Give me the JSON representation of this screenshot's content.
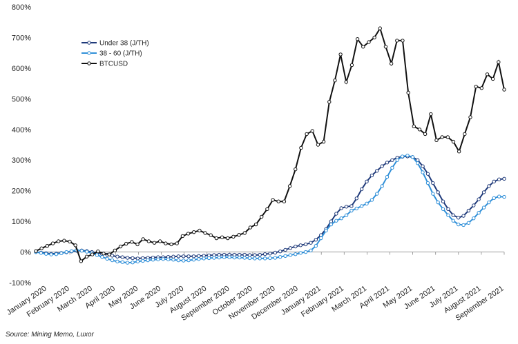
{
  "chart_data": {
    "type": "line",
    "title": "",
    "xlabel": "",
    "ylabel": "",
    "ylim": [
      -100,
      800
    ],
    "y_ticks": [
      "-100%",
      "0%",
      "100%",
      "200%",
      "300%",
      "400%",
      "500%",
      "600%",
      "700%",
      "800%"
    ],
    "y_tick_values": [
      -100,
      0,
      100,
      200,
      300,
      400,
      500,
      600,
      700,
      800
    ],
    "x_ticks": [
      "January 2020",
      "February 2020",
      "March 2020",
      "April 2020",
      "May 2020",
      "June 2020",
      "July 2020",
      "August 2020",
      "September 2020",
      "October 2020",
      "November 2020",
      "December 2020",
      "January 2021",
      "February 2021",
      "March 2021",
      "April 2021",
      "May 2021",
      "June 2021",
      "July 2021",
      "August 2021",
      "September 2021"
    ],
    "x_range": [
      0,
      90
    ],
    "legend_position": "top-left",
    "series": [
      {
        "name": "Under 38 (J/TH)",
        "color": "#1f3a7a",
        "values": [
          0,
          -2,
          -4,
          -6,
          -5,
          -3,
          -1,
          2,
          4,
          5,
          3,
          0,
          -3,
          -6,
          -9,
          -12,
          -15,
          -17,
          -19,
          -20,
          -21,
          -20,
          -19,
          -18,
          -17,
          -17,
          -16,
          -15,
          -14,
          -14,
          -14,
          -14,
          -13,
          -12,
          -11,
          -10,
          -9,
          -9,
          -9,
          -9,
          -9,
          -9,
          -10,
          -10,
          -9,
          -7,
          -5,
          -2,
          2,
          7,
          13,
          18,
          22,
          25,
          30,
          40,
          55,
          75,
          100,
          125,
          143,
          148,
          150,
          175,
          205,
          230,
          250,
          265,
          280,
          292,
          300,
          308,
          311,
          312,
          310,
          300,
          280,
          255,
          225,
          195,
          165,
          140,
          120,
          112,
          118,
          135,
          152,
          172,
          195,
          215,
          230,
          237,
          239
        ]
      },
      {
        "name": "38 - 60 (J/TH)",
        "color": "#2f8fd8",
        "values": [
          0,
          -3,
          -6,
          -8,
          -7,
          -4,
          0,
          3,
          6,
          4,
          1,
          -4,
          -10,
          -16,
          -22,
          -27,
          -31,
          -33,
          -35,
          -34,
          -31,
          -29,
          -27,
          -25,
          -24,
          -23,
          -24,
          -25,
          -27,
          -28,
          -27,
          -25,
          -23,
          -21,
          -20,
          -19,
          -18,
          -17,
          -17,
          -18,
          -18,
          -19,
          -20,
          -21,
          -21,
          -21,
          -20,
          -19,
          -16,
          -13,
          -10,
          -7,
          -3,
          0,
          5,
          20,
          45,
          70,
          90,
          102,
          110,
          120,
          135,
          142,
          150,
          158,
          170,
          190,
          215,
          245,
          275,
          300,
          312,
          315,
          310,
          290,
          260,
          225,
          190,
          162,
          140,
          120,
          102,
          90,
          88,
          95,
          110,
          128,
          145,
          162,
          176,
          181,
          180
        ]
      },
      {
        "name": "BTCUSD",
        "color": "#111111",
        "values": [
          3,
          12,
          20,
          28,
          35,
          37,
          34,
          22,
          -30,
          -15,
          -8,
          2,
          -5,
          -8,
          5,
          18,
          27,
          33,
          25,
          42,
          35,
          30,
          35,
          28,
          25,
          28,
          52,
          60,
          65,
          70,
          62,
          55,
          45,
          48,
          45,
          50,
          56,
          62,
          80,
          90,
          115,
          140,
          170,
          165,
          165,
          215,
          270,
          340,
          385,
          395,
          350,
          360,
          490,
          560,
          645,
          555,
          610,
          695,
          670,
          685,
          700,
          730,
          670,
          615,
          690,
          690,
          520,
          410,
          400,
          385,
          450,
          365,
          375,
          375,
          360,
          328,
          385,
          440,
          540,
          535,
          580,
          565,
          620,
          530
        ]
      }
    ],
    "source": "Source: Mining Memo, Luxor"
  }
}
